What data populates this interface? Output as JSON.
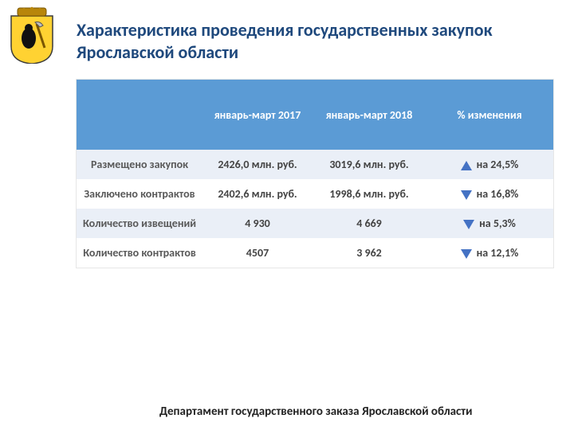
{
  "title": "Характеристика проведения государственных закупок Ярославской области",
  "footer": "Департамент государственного заказа Ярославской области",
  "headers": {
    "col1": "",
    "col2": "январь-март 2017",
    "col3": "январь-март 2018",
    "col4": "% изменения"
  },
  "rows": [
    {
      "label": "Размещено закупок",
      "v2017": "2426,0 млн. руб.",
      "v2018": "3019,6 млн. руб.",
      "dir": "up",
      "change": "на 24,5%"
    },
    {
      "label": "Заключено контрактов",
      "v2017": "2402,6 млн. руб.",
      "v2018": "1998,6 млн. руб.",
      "dir": "down",
      "change": "на 16,8%"
    },
    {
      "label": "Количество извещений",
      "v2017": "4 930",
      "v2018": "4 669",
      "dir": "down",
      "change": "на 5,3%"
    },
    {
      "label": "Количество контрактов",
      "v2017": "4507",
      "v2018": "3 962",
      "dir": "down",
      "change": "на 12,1%"
    }
  ],
  "colors": {
    "title": "#1f497d",
    "header_bg": "#5b9bd5",
    "odd_row_bg": "#eaeff7",
    "arrow": "#4472c4"
  }
}
